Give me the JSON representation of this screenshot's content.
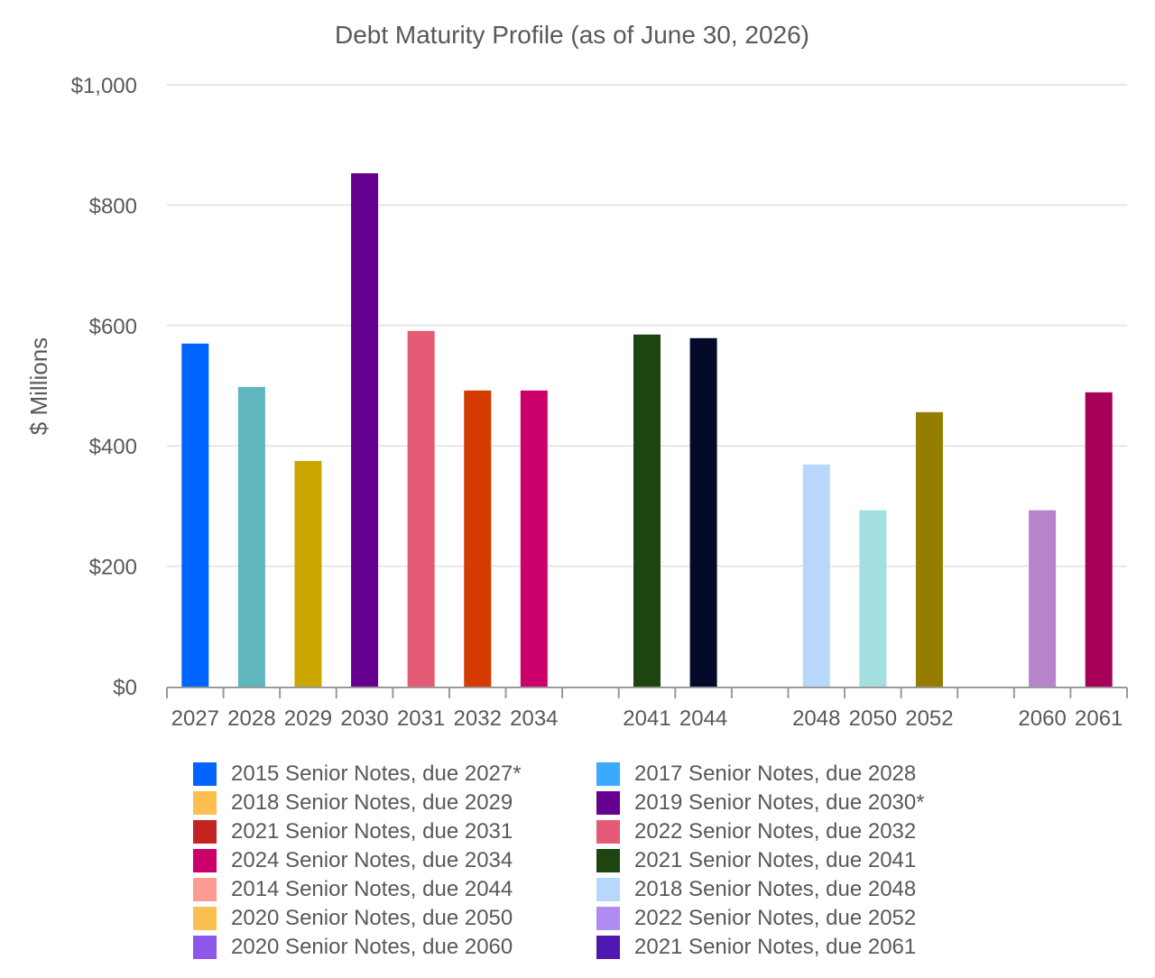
{
  "chart_data": {
    "type": "bar",
    "title": "Debt Maturity Profile (as of June 30, 2026)",
    "ylabel": "$ Millions",
    "xlabel": "",
    "ylim": [
      0,
      1000
    ],
    "yticks": [
      0,
      200,
      400,
      600,
      800,
      1000
    ],
    "ytick_labels": [
      "$0",
      "$200",
      "$400",
      "$600",
      "$800",
      "$1,000"
    ],
    "grid": true,
    "categories": [
      "2027",
      "2028",
      "2029",
      "2030",
      "2031",
      "2032",
      "2034",
      "",
      "2041",
      "2044",
      "",
      "2048",
      "2050",
      "2052",
      "",
      "2060",
      "2061"
    ],
    "values": [
      570,
      498,
      375,
      853,
      591,
      492,
      492,
      null,
      585,
      579,
      null,
      369,
      293,
      456,
      null,
      293,
      489
    ],
    "bar_colors": [
      "#0064FF",
      "#5FB6BD",
      "#CBA600",
      "#660090",
      "#E55A75",
      "#D53A00",
      "#CC006A",
      null,
      "#1E4410",
      "#050A2A",
      null,
      "#B8D7FD",
      "#A3DFE0",
      "#957D00",
      null,
      "#B784CB",
      "#A60059"
    ],
    "legend_position": "bottom",
    "legend": [
      {
        "label": "2015 Senior Notes, due 2027*",
        "color": "#0064FF"
      },
      {
        "label": "2017 Senior Notes, due 2028",
        "color": "#3AAAFF"
      },
      {
        "label": "2018 Senior Notes, due 2029",
        "color": "#FBC04F"
      },
      {
        "label": "2019 Senior Notes, due 2030*",
        "color": "#660090"
      },
      {
        "label": "2021 Senior Notes, due 2031",
        "color": "#C3241F"
      },
      {
        "label": "2022 Senior Notes, due 2032",
        "color": "#E55A75"
      },
      {
        "label": "2024 Senior Notes, due 2034",
        "color": "#CC006A"
      },
      {
        "label": "2021 Senior Notes, due 2041",
        "color": "#1E4410"
      },
      {
        "label": "2014 Senior Notes, due 2044",
        "color": "#FE9C92"
      },
      {
        "label": "2018 Senior Notes, due 2048",
        "color": "#B8D7FD"
      },
      {
        "label": "2020 Senior Notes, due 2050",
        "color": "#FBC04F"
      },
      {
        "label": "2022 Senior Notes, due 2052",
        "color": "#B08CF1"
      },
      {
        "label": "2020 Senior Notes, due 2060",
        "color": "#8D58E9"
      },
      {
        "label": "2021 Senior Notes, due 2061",
        "color": "#4E18B1"
      }
    ]
  }
}
